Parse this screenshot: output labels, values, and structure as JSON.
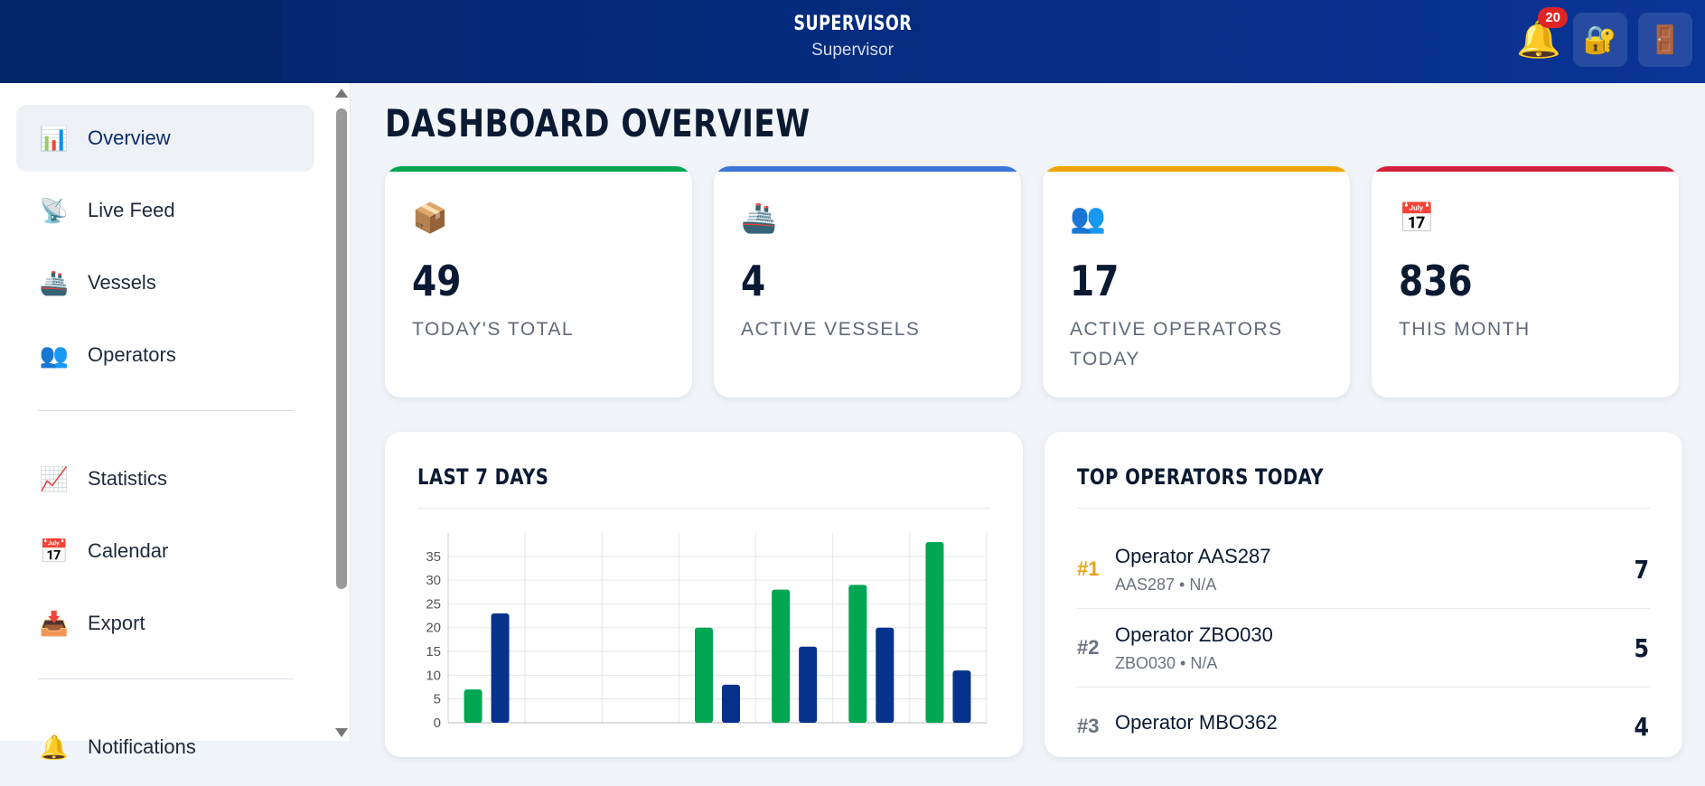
{
  "header": {
    "title": "SUPERVISOR",
    "subtitle": "Supervisor",
    "notification_count": "20"
  },
  "sidebar": {
    "items_primary": [
      {
        "label": "Overview",
        "icon": "📊",
        "active": true
      },
      {
        "label": "Live Feed",
        "icon": "📡"
      },
      {
        "label": "Vessels",
        "icon": "🚢"
      },
      {
        "label": "Operators",
        "icon": "👥"
      }
    ],
    "items_secondary": [
      {
        "label": "Statistics",
        "icon": "📈"
      },
      {
        "label": "Calendar",
        "icon": "📅"
      },
      {
        "label": "Export",
        "icon": "📥"
      }
    ],
    "items_tertiary": [
      {
        "label": "Notifications",
        "icon": "🔔"
      }
    ]
  },
  "main": {
    "title": "DASHBOARD OVERVIEW",
    "stats": [
      {
        "value": "49",
        "label": "TODAY'S TOTAL",
        "icon": "📦",
        "color": "#00a651"
      },
      {
        "value": "4",
        "label": "ACTIVE VESSELS",
        "icon": "🚢",
        "color": "#3b76d9"
      },
      {
        "value": "17",
        "label": "ACTIVE OPERATORS TODAY",
        "icon": "👥",
        "color": "#f0a500"
      },
      {
        "value": "836",
        "label": "THIS MONTH",
        "icon": "📅",
        "color": "#d61f3c"
      }
    ],
    "chart_panel_title": "LAST 7 DAYS",
    "operators_panel_title": "TOP OPERATORS TODAY",
    "top_operators": [
      {
        "rank": "#1",
        "name": "Operator AAS287",
        "sub": "AAS287 • N/A",
        "count": "7"
      },
      {
        "rank": "#2",
        "name": "Operator ZBO030",
        "sub": "ZBO030 • N/A",
        "count": "5"
      },
      {
        "rank": "#3",
        "name": "Operator MBO362",
        "sub": "",
        "count": "4"
      }
    ]
  },
  "chart_data": {
    "type": "bar",
    "categories": [
      "",
      "",
      "",
      "",
      "",
      "",
      ""
    ],
    "series": [
      {
        "values": [
          7,
          0,
          0,
          20,
          28,
          29,
          38
        ],
        "color": "#00a651"
      },
      {
        "values": [
          23,
          0,
          0,
          8,
          16,
          20,
          11
        ],
        "color": "#07328c"
      }
    ],
    "yticks": [
      0,
      5,
      10,
      15,
      20,
      25,
      30,
      35
    ],
    "ylim": [
      0,
      38
    ],
    "grid": true
  }
}
